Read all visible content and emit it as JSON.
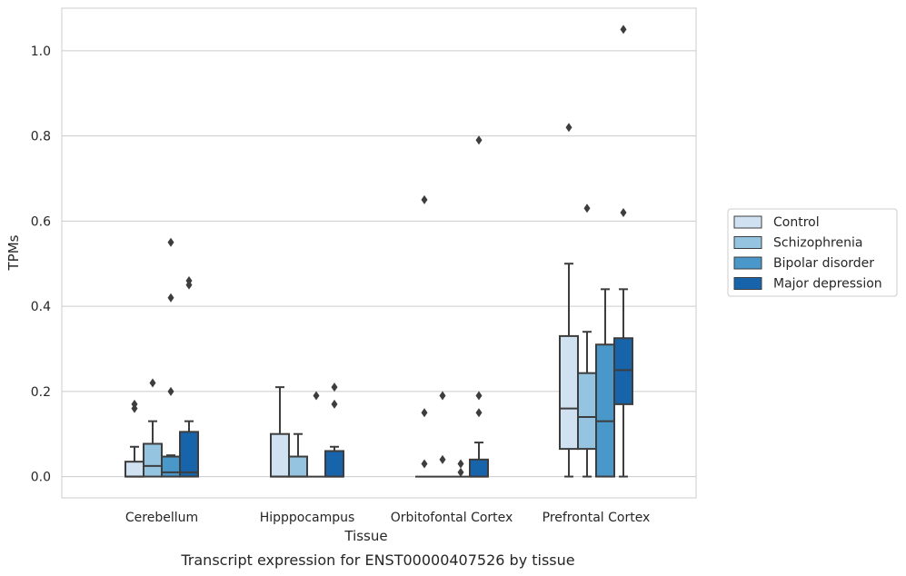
{
  "caption": "Transcript expression for ENST00000407526 by tissue",
  "colors": {
    "grid": "#cccccc",
    "frame": "#cccccc",
    "box_edge": "#3d3d3d",
    "text": "#262626",
    "background": "#ffffff"
  },
  "chart_data": {
    "type": "boxplot",
    "xlabel": "Tissue",
    "ylabel": "TPMs",
    "ylim": [
      -0.05,
      1.1
    ],
    "yticks": [
      0.0,
      0.2,
      0.4,
      0.6,
      0.8,
      1.0
    ],
    "ytick_labels": [
      "0.0",
      "0.2",
      "0.4",
      "0.6",
      "0.8",
      "1.0"
    ],
    "grid": true,
    "legend_position": "right",
    "categories": [
      "Cerebellum",
      "Hipppocampus",
      "Orbitofontal Cortex",
      "Prefrontal Cortex"
    ],
    "series": [
      {
        "name": "Control",
        "color": "#d0e1f2",
        "boxes": [
          {
            "whislo": 0.0,
            "q1": 0.0,
            "med": 0.0,
            "q3": 0.035,
            "whishi": 0.07,
            "fliers": [
              0.16,
              0.17
            ]
          },
          {
            "whislo": 0.0,
            "q1": 0.0,
            "med": 0.0,
            "q3": 0.1,
            "whishi": 0.21,
            "fliers": []
          },
          {
            "whislo": 0.0,
            "q1": 0.0,
            "med": 0.0,
            "q3": 0.0,
            "whishi": 0.0,
            "fliers": [
              0.03,
              0.15,
              0.65
            ]
          },
          {
            "whislo": 0.0,
            "q1": 0.065,
            "med": 0.16,
            "q3": 0.33,
            "whishi": 0.5,
            "fliers": [
              0.82
            ]
          }
        ]
      },
      {
        "name": "Schizophrenia",
        "color": "#94c4df",
        "boxes": [
          {
            "whislo": 0.0,
            "q1": 0.0,
            "med": 0.025,
            "q3": 0.077,
            "whishi": 0.13,
            "fliers": [
              0.22
            ]
          },
          {
            "whislo": 0.0,
            "q1": 0.0,
            "med": 0.0,
            "q3": 0.047,
            "whishi": 0.1,
            "fliers": []
          },
          {
            "whislo": 0.0,
            "q1": 0.0,
            "med": 0.0,
            "q3": 0.0,
            "whishi": 0.0,
            "fliers": [
              0.04,
              0.19
            ]
          },
          {
            "whislo": 0.0,
            "q1": 0.065,
            "med": 0.14,
            "q3": 0.243,
            "whishi": 0.34,
            "fliers": [
              0.63
            ]
          }
        ]
      },
      {
        "name": "Bipolar disorder",
        "color": "#4a98c9",
        "boxes": [
          {
            "whislo": 0.0,
            "q1": 0.0,
            "med": 0.01,
            "q3": 0.047,
            "whishi": 0.05,
            "fliers": [
              0.2,
              0.42,
              0.55
            ]
          },
          {
            "whislo": 0.0,
            "q1": 0.0,
            "med": 0.0,
            "q3": 0.0,
            "whishi": 0.0,
            "fliers": [
              0.19
            ]
          },
          {
            "whislo": 0.0,
            "q1": 0.0,
            "med": 0.0,
            "q3": 0.0,
            "whishi": 0.0,
            "fliers": [
              0.01,
              0.03
            ]
          },
          {
            "whislo": 0.0,
            "q1": 0.0,
            "med": 0.13,
            "q3": 0.31,
            "whishi": 0.44,
            "fliers": []
          }
        ]
      },
      {
        "name": "Major depression",
        "color": "#1764ab",
        "boxes": [
          {
            "whislo": 0.0,
            "q1": 0.0,
            "med": 0.01,
            "q3": 0.105,
            "whishi": 0.13,
            "fliers": [
              0.45,
              0.46
            ]
          },
          {
            "whislo": 0.0,
            "q1": 0.0,
            "med": 0.0,
            "q3": 0.06,
            "whishi": 0.07,
            "fliers": [
              0.17,
              0.21
            ]
          },
          {
            "whislo": 0.0,
            "q1": 0.0,
            "med": 0.0,
            "q3": 0.04,
            "whishi": 0.08,
            "fliers": [
              0.15,
              0.19,
              0.79
            ]
          },
          {
            "whislo": 0.0,
            "q1": 0.17,
            "med": 0.25,
            "q3": 0.325,
            "whishi": 0.44,
            "fliers": [
              0.62,
              1.05
            ]
          }
        ]
      }
    ]
  }
}
